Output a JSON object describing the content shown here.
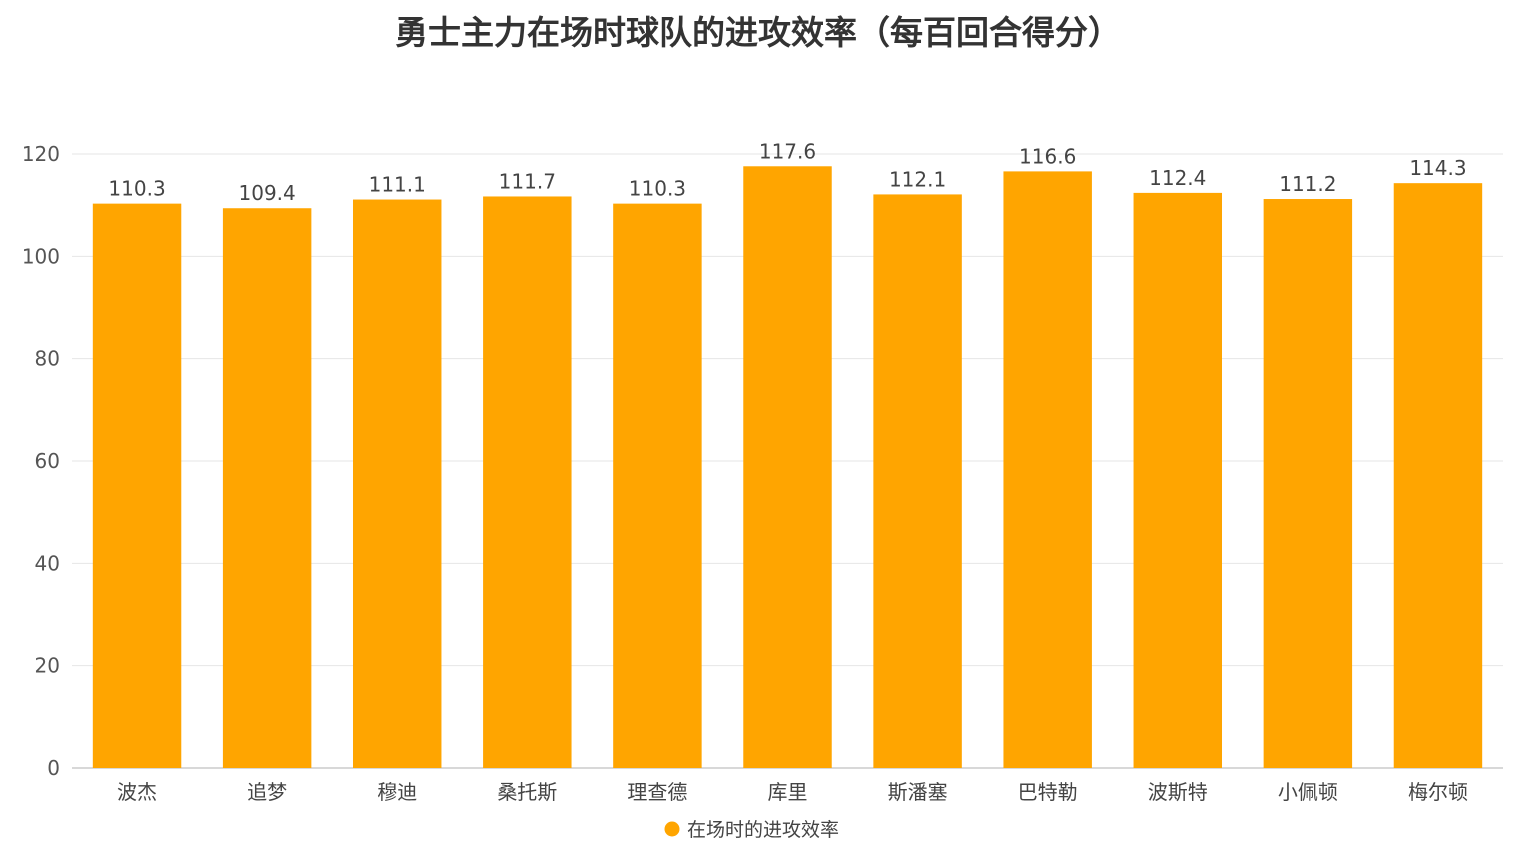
{
  "chart_data": {
    "type": "bar",
    "title": "勇士主力在场时球队的进攻效率（每百回合得分）",
    "xlabel": "",
    "ylabel": "",
    "ylim": [
      0,
      120
    ],
    "yticks": [
      0,
      20,
      40,
      60,
      80,
      100,
      120
    ],
    "grid": true,
    "legend_position": "bottom",
    "categories": [
      "波杰",
      "追梦",
      "穆迪",
      "桑托斯",
      "理查德",
      "库里",
      "斯潘塞",
      "巴特勒",
      "波斯特",
      "小佩顿",
      "梅尔顿"
    ],
    "series": [
      {
        "name": "在场时的进攻效率",
        "color": "#FFA500",
        "values": [
          110.3,
          109.4,
          111.1,
          111.7,
          110.3,
          117.6,
          112.1,
          116.6,
          112.4,
          111.2,
          114.3
        ],
        "labels": [
          "110.3",
          "109.4",
          "111.1",
          "111.7",
          "110.3",
          "117.6",
          "112.1",
          "116.6",
          "112.4",
          "111.2",
          "114.3"
        ]
      }
    ]
  }
}
